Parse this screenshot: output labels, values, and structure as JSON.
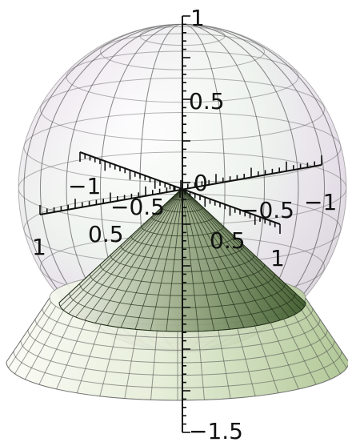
{
  "chart_data": {
    "type": "surface3d",
    "title": "",
    "surfaces": [
      {
        "shape": "sphere",
        "center": [
          0,
          0,
          0
        ],
        "radius": 1,
        "color_top": "#e9d8ec",
        "color_side": "#e4eedf",
        "opacity": 0.55
      },
      {
        "shape": "cone",
        "apex": [
          0,
          0,
          0
        ],
        "half_angle_deg": 45,
        "z_range": [
          -1,
          0
        ],
        "color": "#556d3e",
        "opacity": 0.75
      },
      {
        "shape": "cone",
        "apex": [
          0,
          0,
          0
        ],
        "z_range": [
          -1.5,
          -1
        ],
        "color": "#c7d9ae",
        "opacity": 0.5
      }
    ],
    "axes": {
      "x": {
        "ticks": [
          {
            "value": "-1",
            "label": "−1"
          },
          {
            "value": "-0.5",
            "label": "−0.5"
          },
          {
            "value": "0",
            "label": "0"
          },
          {
            "value": "0.5",
            "label": "0.5"
          },
          {
            "value": "1",
            "label": "1"
          }
        ]
      },
      "y": {
        "ticks": [
          {
            "value": "-1",
            "label": "−1"
          },
          {
            "value": "-0.5",
            "label": "−0.5"
          },
          {
            "value": "0.5",
            "label": "0.5"
          },
          {
            "value": "1",
            "label": "1"
          }
        ]
      },
      "z": {
        "range": [
          -1.5,
          1
        ],
        "ticks": [
          {
            "value": "1",
            "label": "1"
          },
          {
            "value": "0.5",
            "label": "0.5"
          },
          {
            "value": "-1.5",
            "label": "−1.5"
          }
        ]
      }
    }
  }
}
